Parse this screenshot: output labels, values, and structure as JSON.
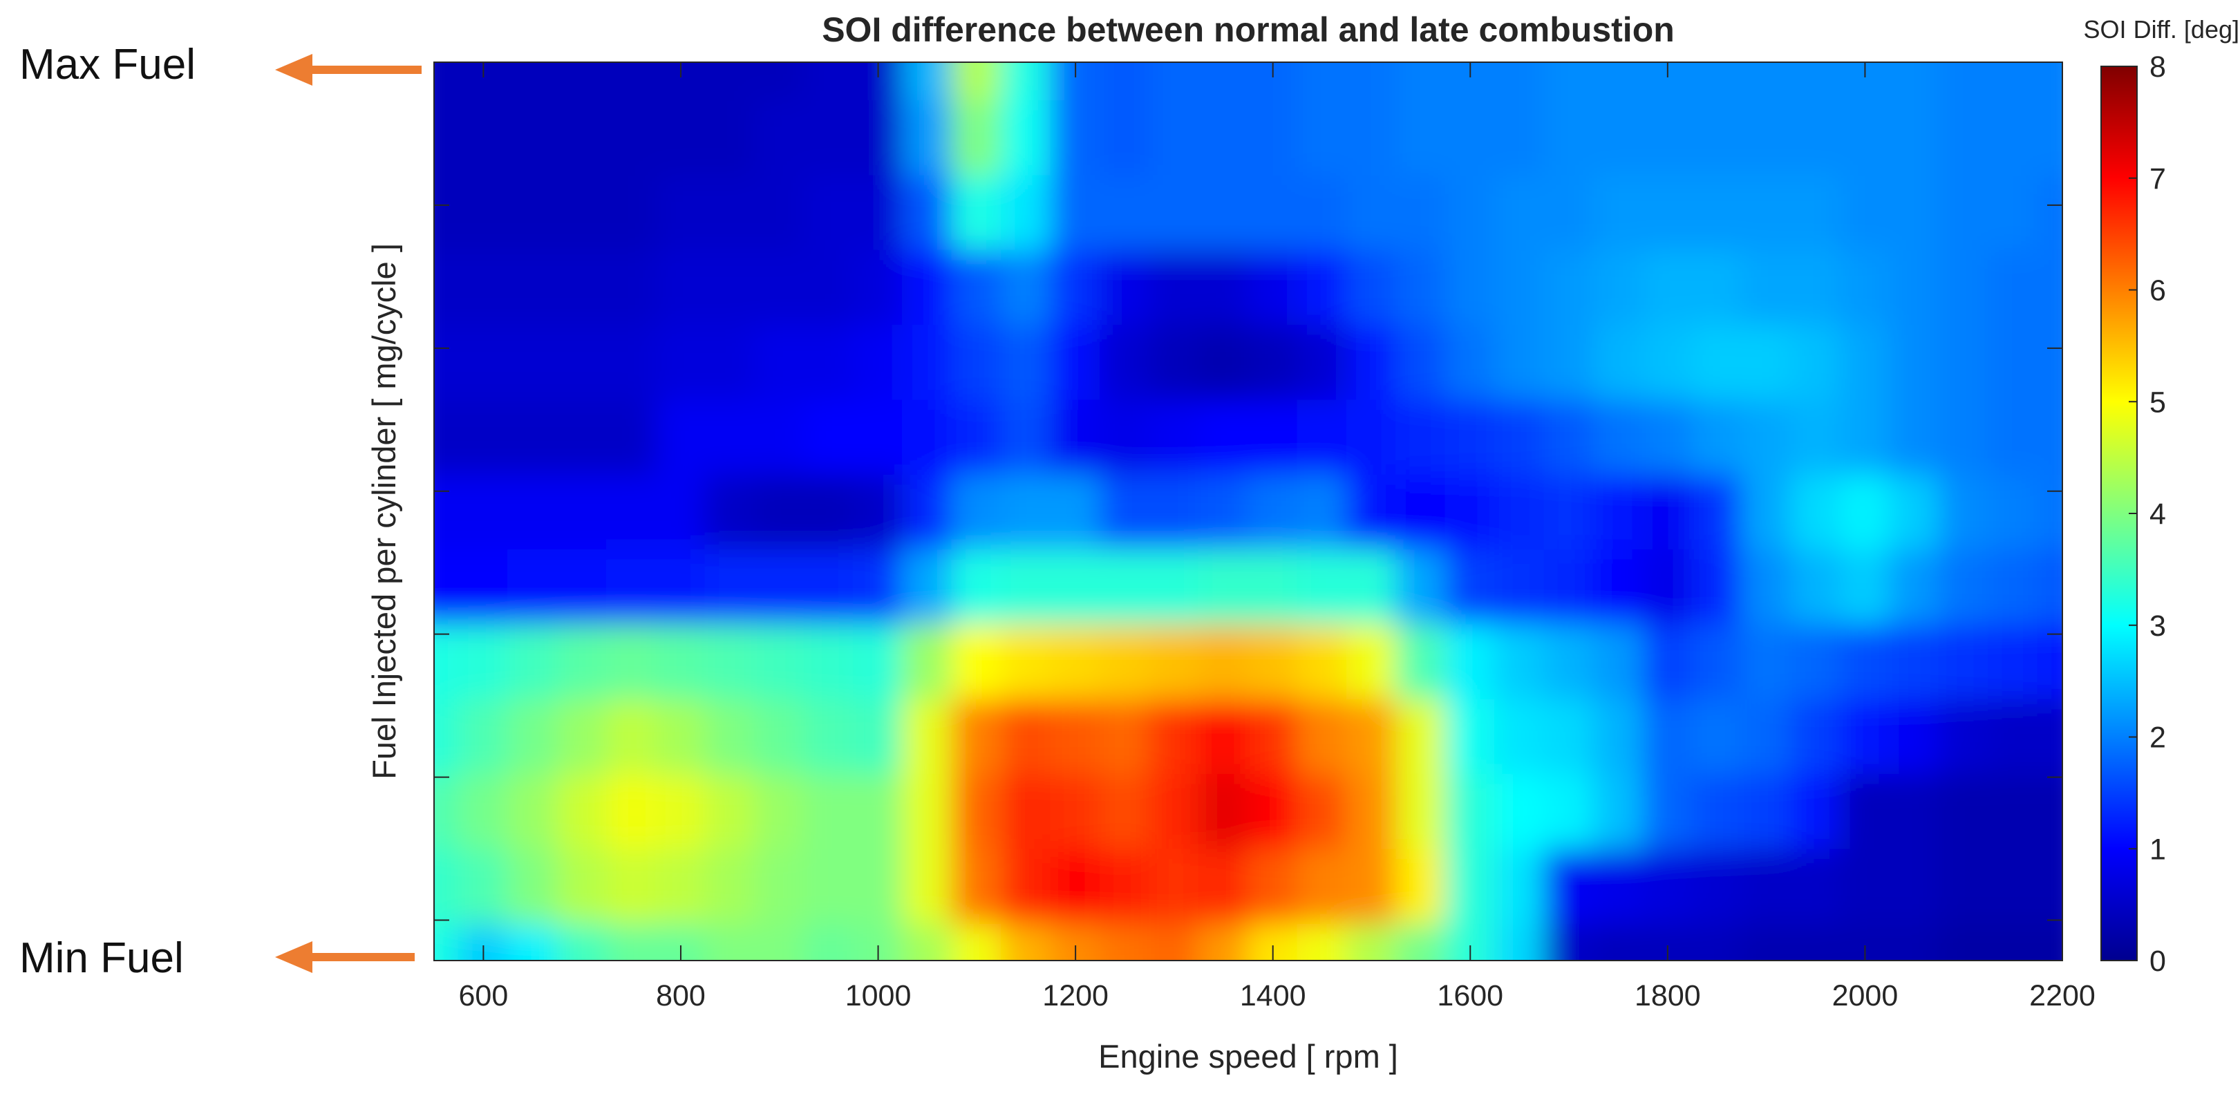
{
  "annotations": {
    "max_label": "Max Fuel",
    "min_label": "Min Fuel",
    "arrow_color": "#ed7d31"
  },
  "chart_data": {
    "type": "heatmap",
    "title": "SOI difference between normal and late combustion",
    "xlabel": "Engine speed [ rpm ]",
    "ylabel": "Fuel Injected per cylinder [ mg/cycle ]",
    "xlim": [
      550,
      2200
    ],
    "xticks": [
      600,
      800,
      1000,
      1200,
      1400,
      1600,
      1800,
      2000,
      2200
    ],
    "y_tick_labels_shown": false,
    "colorbar": {
      "label": "SOI Diff. [deg]",
      "range": [
        0,
        8
      ],
      "ticks": [
        0,
        1,
        2,
        3,
        4,
        5,
        6,
        7,
        8
      ],
      "colormap": "jet",
      "placement": "right"
    },
    "x": [
      550,
      600,
      650,
      700,
      750,
      800,
      850,
      900,
      950,
      1000,
      1050,
      1100,
      1150,
      1200,
      1250,
      1300,
      1350,
      1400,
      1450,
      1500,
      1550,
      1600,
      1650,
      1700,
      1750,
      1800,
      1850,
      1900,
      1950,
      2000,
      2050,
      2100,
      2150,
      2200
    ],
    "y_levels": [
      "0.00",
      "0.08",
      "0.17",
      "0.25",
      "0.33",
      "0.42",
      "0.50",
      "0.58",
      "0.67",
      "0.75",
      "0.83",
      "0.92",
      "1.00"
    ],
    "z": [
      [
        3.2,
        2.6,
        2.9,
        3.5,
        3.8,
        3.8,
        4.0,
        4.0,
        3.8,
        3.9,
        4.3,
        4.9,
        5.6,
        5.9,
        6.1,
        6.2,
        5.8,
        5.2,
        4.9,
        4.4,
        3.9,
        3.3,
        2.7,
        0.5,
        0.4,
        0.4,
        0.4,
        0.3,
        0.3,
        0.3,
        0.3,
        0.2,
        0.2,
        0.2
      ],
      [
        3.4,
        3.6,
        4.0,
        4.4,
        4.6,
        4.5,
        4.3,
        4.1,
        4.0,
        4.0,
        4.8,
        6.1,
        6.7,
        7.0,
        6.8,
        6.6,
        6.7,
        6.3,
        6.0,
        5.9,
        5.1,
        3.3,
        2.8,
        0.9,
        0.8,
        0.7,
        0.6,
        0.5,
        0.5,
        0.4,
        0.4,
        0.3,
        0.3,
        0.3
      ],
      [
        3.6,
        3.9,
        4.2,
        4.6,
        4.9,
        4.8,
        4.5,
        4.2,
        4.0,
        4.0,
        4.8,
        6.2,
        6.7,
        6.6,
        6.4,
        6.7,
        7.2,
        7.0,
        6.4,
        5.9,
        4.8,
        3.3,
        3.0,
        2.9,
        2.5,
        1.8,
        1.6,
        1.5,
        1.2,
        0.4,
        0.4,
        0.3,
        0.3,
        0.3
      ],
      [
        3.3,
        3.6,
        3.9,
        4.2,
        4.5,
        4.3,
        4.0,
        3.8,
        3.6,
        3.5,
        4.8,
        6.0,
        6.4,
        6.3,
        6.2,
        6.6,
        7.0,
        6.6,
        6.0,
        5.8,
        4.8,
        3.1,
        2.8,
        2.7,
        2.4,
        1.8,
        1.9,
        1.8,
        1.5,
        1.2,
        0.9,
        0.6,
        0.5,
        0.5
      ],
      [
        3.2,
        3.3,
        3.5,
        3.7,
        3.8,
        3.7,
        3.6,
        3.5,
        3.4,
        3.3,
        4.2,
        5.0,
        5.2,
        5.3,
        5.4,
        5.5,
        5.6,
        5.5,
        5.3,
        4.9,
        3.6,
        2.9,
        2.6,
        2.4,
        2.2,
        1.5,
        1.7,
        1.9,
        1.8,
        1.6,
        1.5,
        1.4,
        1.3,
        1.2
      ],
      [
        1.0,
        1.0,
        1.1,
        1.1,
        1.2,
        1.2,
        1.3,
        1.3,
        1.3,
        1.4,
        2.3,
        3.2,
        3.3,
        3.3,
        3.3,
        3.3,
        3.4,
        3.4,
        3.3,
        3.3,
        2.3,
        1.5,
        1.4,
        1.3,
        1.0,
        0.8,
        1.3,
        2.1,
        2.4,
        2.6,
        2.2,
        1.9,
        1.8,
        1.7
      ],
      [
        0.9,
        0.9,
        0.9,
        0.9,
        0.9,
        0.9,
        0.5,
        0.4,
        0.4,
        0.5,
        1.3,
        2.1,
        2.2,
        2.2,
        1.6,
        1.6,
        1.7,
        1.9,
        2.0,
        1.2,
        1.0,
        1.1,
        1.3,
        1.4,
        1.2,
        0.9,
        1.4,
        2.3,
        2.7,
        2.9,
        2.6,
        2.1,
        2.0,
        1.9
      ],
      [
        0.5,
        0.5,
        0.5,
        0.5,
        0.5,
        0.9,
        0.9,
        0.9,
        1.0,
        1.0,
        1.1,
        1.3,
        1.6,
        0.9,
        0.8,
        0.9,
        1.0,
        1.0,
        1.1,
        1.2,
        1.3,
        1.4,
        1.5,
        1.7,
        1.9,
        2.0,
        2.2,
        2.3,
        2.4,
        2.3,
        2.1,
        2.0,
        1.9,
        1.9
      ],
      [
        0.6,
        0.6,
        0.6,
        0.6,
        0.6,
        0.7,
        0.7,
        0.8,
        0.8,
        0.9,
        1.2,
        1.5,
        1.7,
        1.1,
        0.6,
        0.4,
        0.3,
        0.4,
        0.6,
        1.2,
        1.6,
        1.9,
        2.1,
        2.2,
        2.4,
        2.5,
        2.6,
        2.6,
        2.5,
        2.3,
        2.1,
        2.0,
        1.9,
        1.9
      ],
      [
        0.5,
        0.5,
        0.5,
        0.5,
        0.5,
        0.6,
        0.6,
        0.6,
        0.6,
        0.7,
        1.1,
        1.7,
        2.0,
        1.4,
        0.8,
        0.6,
        0.6,
        0.8,
        1.2,
        1.6,
        1.8,
        2.0,
        2.1,
        2.2,
        2.3,
        2.4,
        2.4,
        2.3,
        2.3,
        2.2,
        2.1,
        2.0,
        1.9,
        1.9
      ],
      [
        0.4,
        0.4,
        0.4,
        0.4,
        0.4,
        0.5,
        0.5,
        0.5,
        0.6,
        0.6,
        1.7,
        3.2,
        2.8,
        1.8,
        1.8,
        1.8,
        1.8,
        1.8,
        1.8,
        1.9,
        1.9,
        2.0,
        2.1,
        2.1,
        2.2,
        2.2,
        2.2,
        2.2,
        2.2,
        2.1,
        2.1,
        2.0,
        2.0,
        1.9
      ],
      [
        0.4,
        0.4,
        0.4,
        0.4,
        0.4,
        0.4,
        0.4,
        0.5,
        0.5,
        0.5,
        2.2,
        4.0,
        3.1,
        1.8,
        1.7,
        1.8,
        1.8,
        1.8,
        1.9,
        1.9,
        2.0,
        2.0,
        2.0,
        2.1,
        2.1,
        2.1,
        2.1,
        2.1,
        2.1,
        2.1,
        2.1,
        2.0,
        2.0,
        2.0
      ],
      [
        0.4,
        0.4,
        0.4,
        0.4,
        0.4,
        0.4,
        0.4,
        0.4,
        0.5,
        0.5,
        2.4,
        4.4,
        3.2,
        1.8,
        1.7,
        1.8,
        1.8,
        1.8,
        1.9,
        1.9,
        2.0,
        2.0,
        2.0,
        2.1,
        2.1,
        2.1,
        2.1,
        2.1,
        2.1,
        2.1,
        2.1,
        2.0,
        2.0,
        2.0
      ]
    ]
  }
}
